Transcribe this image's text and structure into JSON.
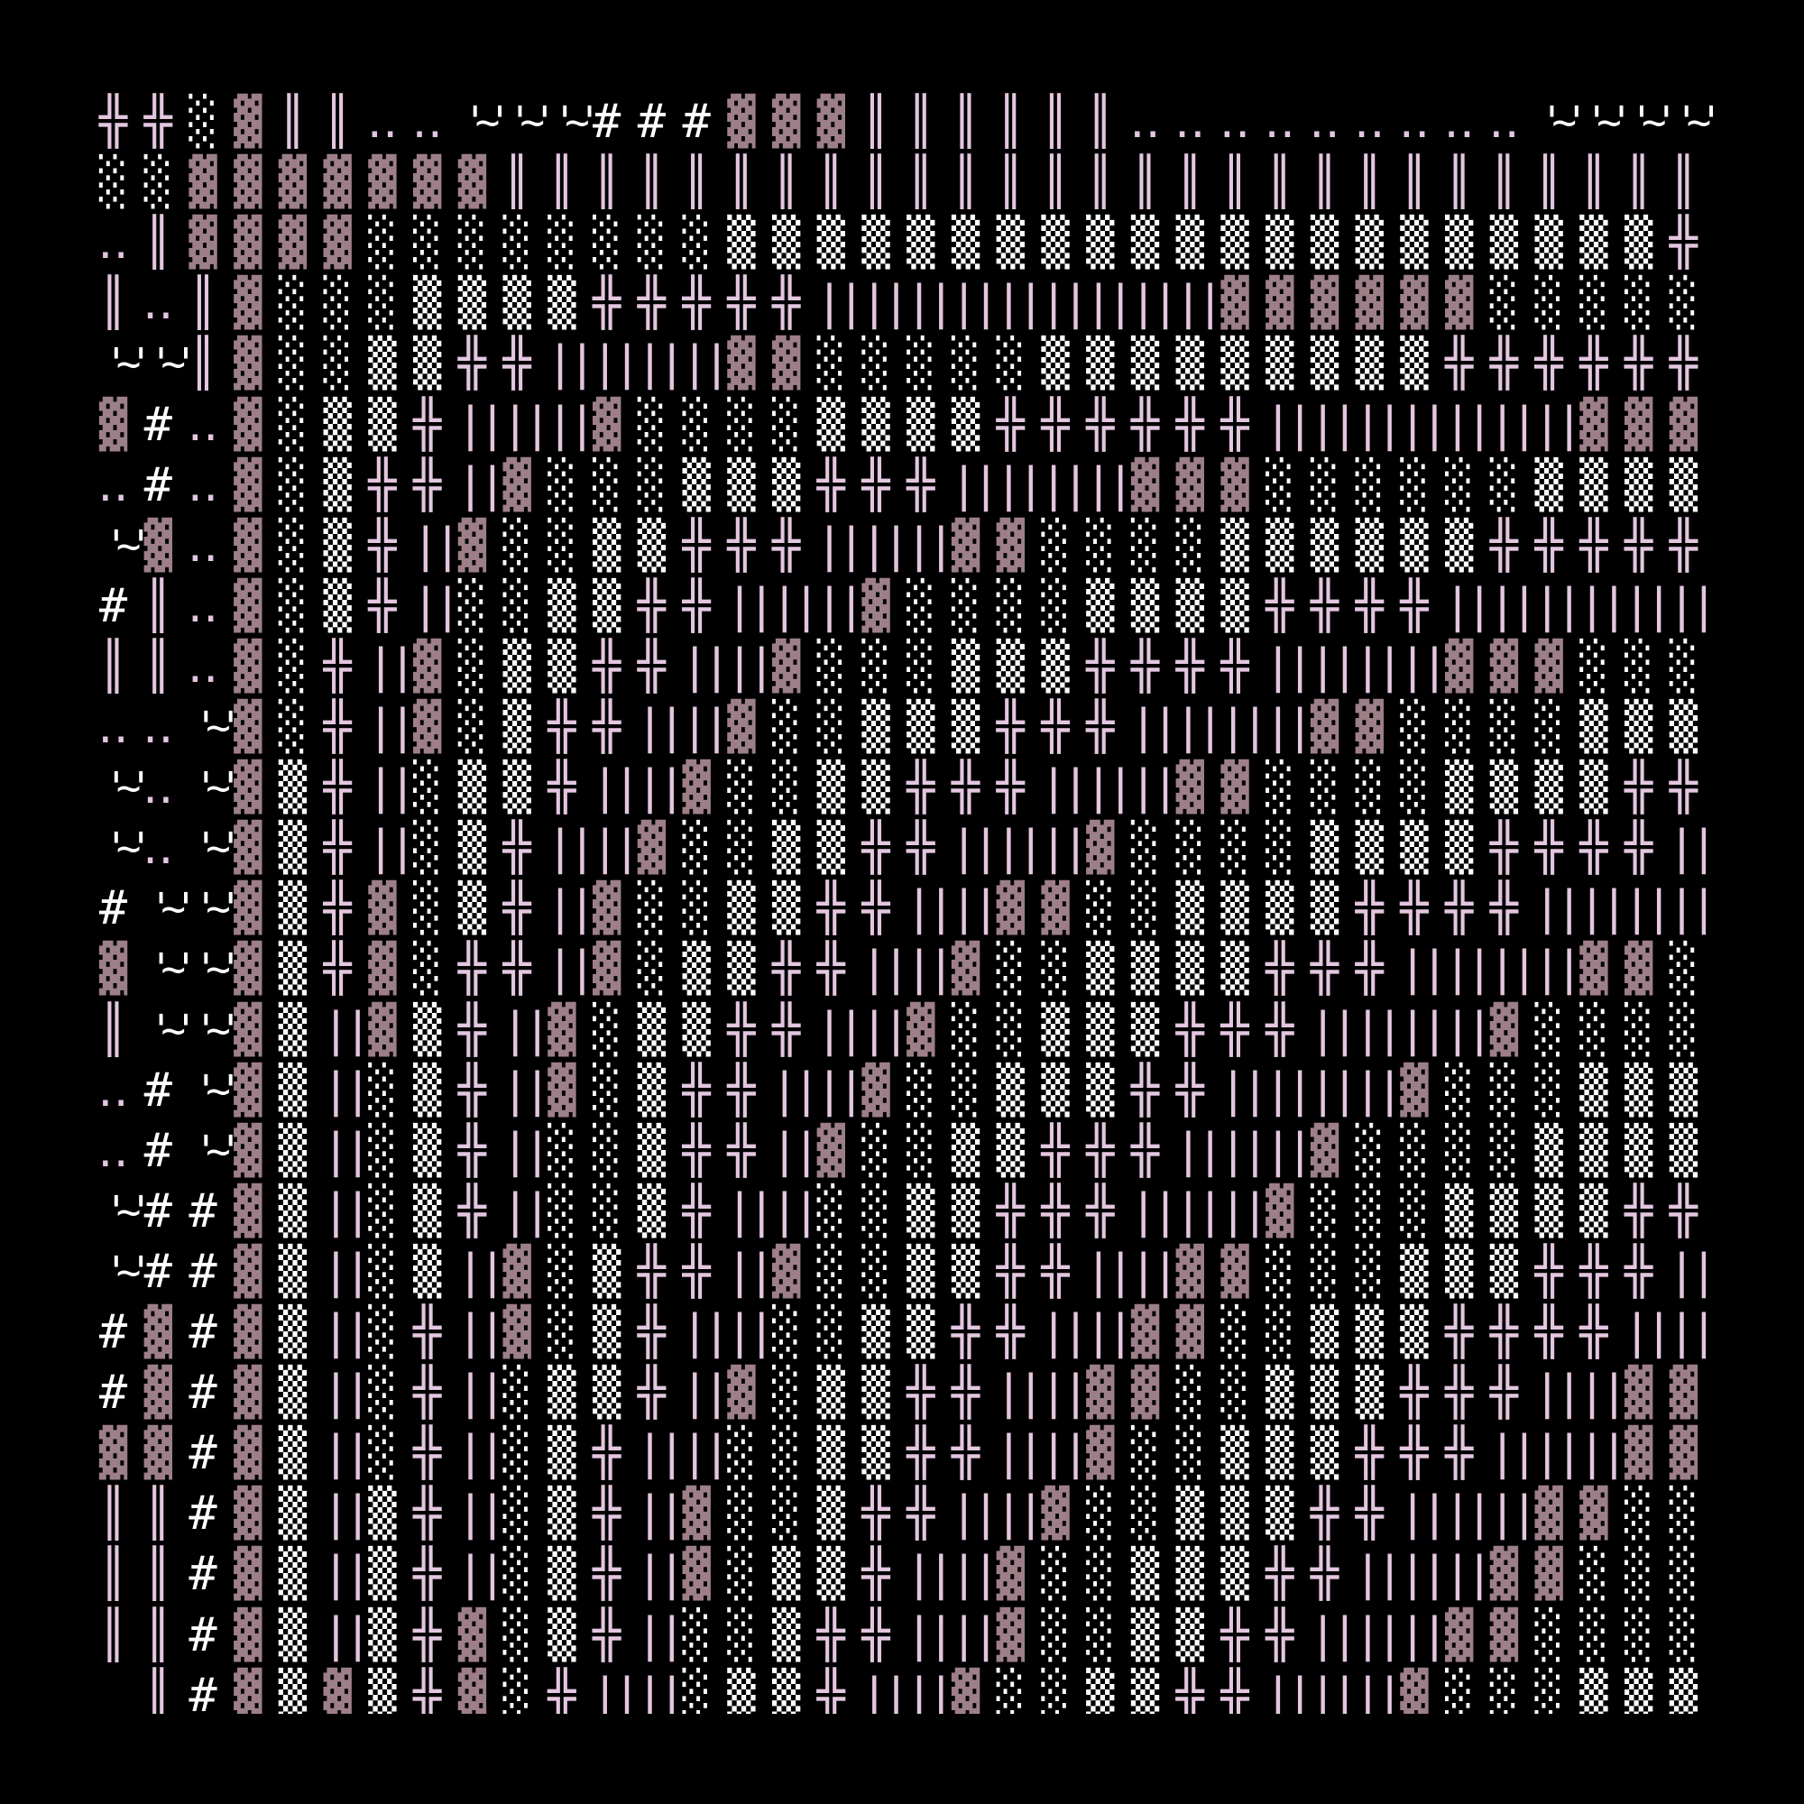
{
  "colors": {
    "background": "#000000",
    "pink": "#e3c6df",
    "mauve": "#9d7f88",
    "white": "#ffffff"
  },
  "art_rows": [
    [
      "╬",
      "╬",
      "░",
      "▓",
      "║",
      "║",
      "‥",
      "‥",
      "'~'",
      "'~'",
      "'~'",
      "#",
      "#",
      "#",
      "▓",
      "▓",
      "▓",
      "║",
      "║",
      "║",
      "║",
      "║",
      "║",
      "‥",
      "‥",
      "‥",
      "‥",
      "‥",
      "‥",
      "‥",
      "‥",
      "‥",
      "'~'",
      "'~'",
      "'~'",
      "'~'"
    ],
    [
      "░",
      "░",
      "▓",
      "▓",
      "▓",
      "▓",
      "▓",
      "▓",
      "▓",
      "║",
      "║",
      "║",
      "║",
      "║",
      "║",
      "║",
      "║",
      "║",
      "║",
      "║",
      "║",
      "║",
      "║",
      "║",
      "║",
      "║",
      "║",
      "║",
      "║",
      "║",
      "║",
      "║",
      "║",
      "║",
      "║",
      "║"
    ],
    [
      "‥",
      "║",
      "▓",
      "▓",
      "▓",
      "▓",
      "░",
      "░",
      "░",
      "░",
      "░",
      "░",
      "░",
      "░",
      "▒",
      "▒",
      "▒",
      "▒",
      "▒",
      "▒",
      "▒",
      "▒",
      "▒",
      "▒",
      "▒",
      "▒",
      "▒",
      "▒",
      "▒",
      "▒",
      "▒",
      "▒",
      "▒",
      "▒",
      "▒",
      "╬"
    ],
    [
      "║",
      "‥",
      "║",
      "▓",
      "░",
      "░",
      "░",
      "▒",
      "▒",
      "▒",
      "▒",
      "╬",
      "╬",
      "╬",
      "╬",
      "╬",
      "||",
      "||",
      "||",
      "||",
      "||",
      "||",
      "||",
      "||",
      "||",
      "▓",
      "▓",
      "▓",
      "▓",
      "▓",
      "▓",
      "░",
      "░",
      "░",
      "░",
      "░"
    ],
    [
      "'~'",
      "'~'",
      "║",
      "▓",
      "░",
      "░",
      "▒",
      "▒",
      "╬",
      "╬",
      "||",
      "||",
      "||",
      "||",
      "▓",
      "▓",
      "░",
      "░",
      "░",
      "░",
      "░",
      "▒",
      "▒",
      "▒",
      "▒",
      "▒",
      "▒",
      "▒",
      "▒",
      "▒",
      "╬",
      "╬",
      "╬",
      "╬",
      "╬",
      "╬"
    ],
    [
      "▓",
      "#",
      "‥",
      "▓",
      "░",
      "▒",
      "▒",
      "╬",
      "||",
      "||",
      "||",
      "▓",
      "░",
      "░",
      "░",
      "░",
      "▒",
      "▒",
      "▒",
      "▒",
      "╬",
      "╬",
      "╬",
      "╬",
      "╬",
      "╬",
      "||",
      "||",
      "||",
      "||",
      "||",
      "||",
      "||",
      "▓",
      "▓",
      "▓"
    ],
    [
      "‥",
      "#",
      "‥",
      "▓",
      "░",
      "▒",
      "╬",
      "╬",
      "||",
      "▓",
      "░",
      "░",
      "░",
      "▒",
      "▒",
      "▒",
      "╬",
      "╬",
      "╬",
      "||",
      "||",
      "||",
      "||",
      "▓",
      "▓",
      "▓",
      "░",
      "░",
      "░",
      "░",
      "░",
      "░",
      "▒",
      "▒",
      "▒",
      "▒"
    ],
    [
      "'~'",
      "▓",
      "‥",
      "▓",
      "░",
      "▒",
      "╬",
      "||",
      "▓",
      "░",
      "░",
      "▒",
      "▒",
      "╬",
      "╬",
      "╬",
      "||",
      "||",
      "||",
      "▓",
      "▓",
      "░",
      "░",
      "░",
      "░",
      "▒",
      "▒",
      "▒",
      "▒",
      "▒",
      "▒",
      "╬",
      "╬",
      "╬",
      "╬",
      "╬"
    ],
    [
      "#",
      "║",
      "‥",
      "▓",
      "░",
      "▒",
      "╬",
      "||",
      "░",
      "░",
      "▒",
      "▒",
      "╬",
      "╬",
      "||",
      "||",
      "||",
      "▓",
      "░",
      "░",
      "░",
      "░",
      "▒",
      "▒",
      "▒",
      "▒",
      "╬",
      "╬",
      "╬",
      "╬",
      "||",
      "||",
      "||",
      "||",
      "||",
      "||"
    ],
    [
      "║",
      "║",
      "‥",
      "▓",
      "░",
      "╬",
      "||",
      "▓",
      "░",
      "▒",
      "▒",
      "╬",
      "╬",
      "||",
      "||",
      "▓",
      "░",
      "░",
      "░",
      "▒",
      "▒",
      "▒",
      "╬",
      "╬",
      "╬",
      "╬",
      "||",
      "||",
      "||",
      "||",
      "▓",
      "▓",
      "▓",
      "░",
      "░",
      "░"
    ],
    [
      "‥",
      "‥",
      "'~'",
      "▓",
      "░",
      "╬",
      "||",
      "▓",
      "░",
      "▒",
      "╬",
      "╬",
      "||",
      "||",
      "▓",
      "░",
      "░",
      "▒",
      "▒",
      "▒",
      "╬",
      "╬",
      "╬",
      "||",
      "||",
      "||",
      "||",
      "▓",
      "▓",
      "░",
      "░",
      "░",
      "░",
      "▒",
      "▒",
      "▒"
    ],
    [
      "'~'",
      "‥",
      "'~'",
      "▓",
      "▒",
      "╬",
      "||",
      "░",
      "▒",
      "▒",
      "╬",
      "||",
      "||",
      "▓",
      "░",
      "░",
      "▒",
      "▒",
      "╬",
      "╬",
      "╬",
      "||",
      "||",
      "||",
      "▓",
      "▓",
      "░",
      "░",
      "░",
      "░",
      "▒",
      "▒",
      "▒",
      "▒",
      "╬",
      "╬"
    ],
    [
      "'~'",
      "‥",
      "'~'",
      "▓",
      "▒",
      "╬",
      "||",
      "░",
      "▒",
      "╬",
      "||",
      "||",
      "▓",
      "░",
      "░",
      "▒",
      "▒",
      "╬",
      "╬",
      "||",
      "||",
      "||",
      "▓",
      "░",
      "░",
      "░",
      "░",
      "▒",
      "▒",
      "▒",
      "▒",
      "╬",
      "╬",
      "╬",
      "╬",
      "||"
    ],
    [
      "#",
      "'~'",
      "'~'",
      "▓",
      "▒",
      "╬",
      "▓",
      "░",
      "▒",
      "╬",
      "||",
      "▓",
      "░",
      "░",
      "▒",
      "▒",
      "╬",
      "╬",
      "||",
      "||",
      "▓",
      "▓",
      "░",
      "░",
      "▒",
      "▒",
      "▒",
      "▒",
      "╬",
      "╬",
      "╬",
      "╬",
      "||",
      "||",
      "||",
      "||"
    ],
    [
      "▓",
      "'~'",
      "'~'",
      "▓",
      "▒",
      "╬",
      "▓",
      "░",
      "╬",
      "╬",
      "||",
      "▓",
      "░",
      "▒",
      "▒",
      "╬",
      "╬",
      "||",
      "||",
      "▓",
      "░",
      "░",
      "▒",
      "▒",
      "▒",
      "▒",
      "╬",
      "╬",
      "╬",
      "||",
      "||",
      "||",
      "||",
      "▓",
      "▓",
      "░"
    ],
    [
      "║",
      "'~'",
      "'~'",
      "▓",
      "▒",
      "||",
      "▓",
      "▒",
      "╬",
      "||",
      "▓",
      "░",
      "▒",
      "▒",
      "╬",
      "╬",
      "||",
      "||",
      "▓",
      "░",
      "░",
      "▒",
      "▒",
      "▒",
      "╬",
      "╬",
      "╬",
      "||",
      "||",
      "||",
      "||",
      "▓",
      "░",
      "░",
      "░",
      "░"
    ],
    [
      "‥",
      "#",
      "'~'",
      "▓",
      "▒",
      "||",
      "░",
      "▒",
      "╬",
      "||",
      "▓",
      "░",
      "▒",
      "╬",
      "╬",
      "||",
      "||",
      "▓",
      "░",
      "░",
      "▒",
      "▒",
      "▒",
      "╬",
      "╬",
      "||",
      "||",
      "||",
      "||",
      "▓",
      "░",
      "░",
      "░",
      "▒",
      "▒",
      "▒"
    ],
    [
      "‥",
      "#",
      "'~'",
      "▓",
      "▒",
      "||",
      "░",
      "▒",
      "╬",
      "||",
      "░",
      "░",
      "▒",
      "╬",
      "╬",
      "||",
      "▓",
      "░",
      "░",
      "▒",
      "▒",
      "╬",
      "╬",
      "╬",
      "||",
      "||",
      "||",
      "▓",
      "░",
      "░",
      "░",
      "░",
      "▒",
      "▒",
      "▒",
      "▒"
    ],
    [
      "'~'",
      "#",
      "#",
      "▓",
      "▒",
      "||",
      "░",
      "▒",
      "╬",
      "||",
      "░",
      "░",
      "▒",
      "╬",
      "||",
      "||",
      "░",
      "░",
      "▒",
      "▒",
      "╬",
      "╬",
      "╬",
      "||",
      "||",
      "||",
      "▓",
      "░",
      "░",
      "░",
      "▒",
      "▒",
      "▒",
      "▒",
      "╬",
      "╬"
    ],
    [
      "'~'",
      "#",
      "#",
      "▓",
      "▒",
      "||",
      "░",
      "▒",
      "||",
      "▓",
      "░",
      "▒",
      "╬",
      "╬",
      "||",
      "▓",
      "░",
      "░",
      "▒",
      "▒",
      "╬",
      "╬",
      "||",
      "||",
      "▓",
      "▓",
      "░",
      "░",
      "░",
      "▒",
      "▒",
      "▒",
      "╬",
      "╬",
      "╬",
      "||"
    ],
    [
      "#",
      "▓",
      "#",
      "▓",
      "▒",
      "||",
      "░",
      "╬",
      "||",
      "▓",
      "░",
      "▒",
      "╬",
      "||",
      "||",
      "░",
      "░",
      "▒",
      "▒",
      "╬",
      "╬",
      "||",
      "||",
      "▓",
      "▓",
      "░",
      "░",
      "▒",
      "▒",
      "▒",
      "╬",
      "╬",
      "╬",
      "╬",
      "||",
      "||"
    ],
    [
      "#",
      "▓",
      "#",
      "▓",
      "▒",
      "||",
      "░",
      "╬",
      "||",
      "░",
      "▒",
      "▒",
      "╬",
      "||",
      "▓",
      "░",
      "▒",
      "▒",
      "╬",
      "╬",
      "||",
      "||",
      "▓",
      "▓",
      "░",
      "░",
      "▒",
      "▒",
      "▒",
      "╬",
      "╬",
      "╬",
      "||",
      "||",
      "▓",
      "▓"
    ],
    [
      "▓",
      "▓",
      "#",
      "▓",
      "▒",
      "||",
      "░",
      "╬",
      "||",
      "░",
      "▒",
      "╬",
      "||",
      "||",
      "░",
      "░",
      "▒",
      "▒",
      "╬",
      "╬",
      "||",
      "||",
      "▓",
      "░",
      "░",
      "▒",
      "▒",
      "▒",
      "╬",
      "╬",
      "╬",
      "||",
      "||",
      "||",
      "▓",
      "▓"
    ],
    [
      "║",
      "║",
      "#",
      "▓",
      "▒",
      "||",
      "▒",
      "╬",
      "||",
      "░",
      "▒",
      "╬",
      "||",
      "▓",
      "░",
      "░",
      "▒",
      "╬",
      "╬",
      "||",
      "||",
      "▓",
      "░",
      "░",
      "▒",
      "▒",
      "▒",
      "╬",
      "╬",
      "||",
      "||",
      "||",
      "▓",
      "▓",
      "░",
      "░"
    ],
    [
      "║",
      "║",
      "#",
      "▓",
      "▒",
      "||",
      "▒",
      "╬",
      "||",
      "░",
      "▒",
      "╬",
      "||",
      "▓",
      "░",
      "▒",
      "▒",
      "╬",
      "||",
      "||",
      "▓",
      "░",
      "░",
      "▒",
      "▒",
      "▒",
      "╬",
      "╬",
      "||",
      "||",
      "||",
      "▓",
      "▓",
      "░",
      "░",
      "░"
    ],
    [
      "║",
      "║",
      "#",
      "▓",
      "▒",
      "||",
      "▒",
      "╬",
      "▓",
      "░",
      "▒",
      "╬",
      "||",
      "░",
      "░",
      "▒",
      "╬",
      "╬",
      "||",
      "||",
      "▓",
      "░",
      "░",
      "▒",
      "▒",
      "╬",
      "╬",
      "||",
      "||",
      "||",
      "▓",
      "▓",
      "░",
      "░",
      "░",
      "░"
    ],
    [
      " ",
      "║",
      "#",
      "▓",
      "▒",
      "▓",
      "▒",
      "╬",
      "▓",
      "░",
      "╬",
      "||",
      "||",
      "░",
      "▒",
      "▒",
      "╬",
      "||",
      "||",
      "▓",
      "░",
      "░",
      "▒",
      "▒",
      "╬",
      "╬",
      "||",
      "||",
      "||",
      "▓",
      "░",
      "░",
      "░",
      "▒",
      "▒",
      "▒"
    ]
  ]
}
